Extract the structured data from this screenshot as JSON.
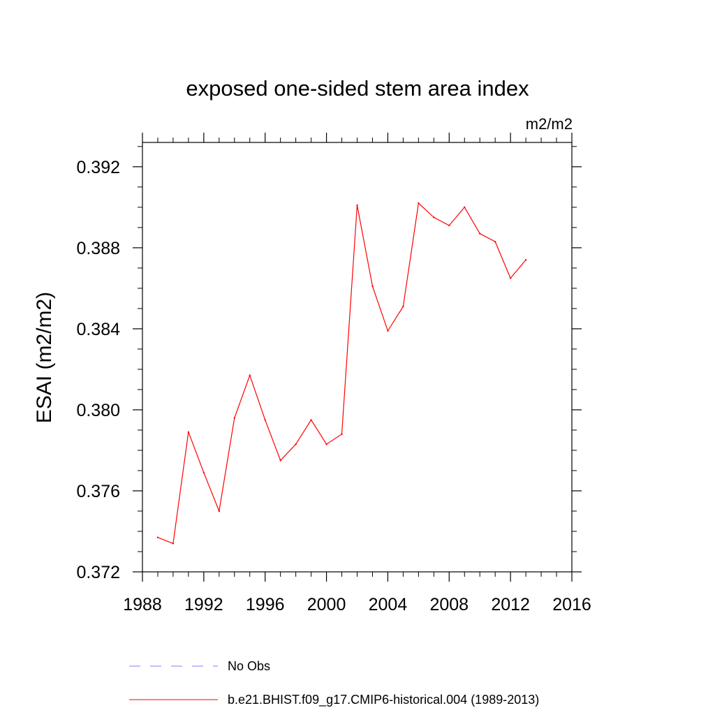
{
  "chart_data": {
    "type": "line",
    "title": "exposed one-sided stem area index",
    "units": "m2/m2",
    "ylabel": "ESAI  (m2/m2)",
    "xlabel": "",
    "xlim": [
      1988,
      2016
    ],
    "ylim": [
      0.372,
      0.3932
    ],
    "x_ticks": [
      1988,
      1992,
      1996,
      2000,
      2004,
      2008,
      2012,
      2016
    ],
    "x_tick_labels": [
      "1988",
      "1992",
      "1996",
      "2000",
      "2004",
      "2008",
      "2012",
      "2016"
    ],
    "y_ticks": [
      0.372,
      0.376,
      0.38,
      0.384,
      0.388,
      0.392
    ],
    "y_tick_labels": [
      "0.372",
      "0.376",
      "0.380",
      "0.384",
      "0.388",
      "0.392"
    ],
    "grid": false,
    "legend_position": "bottom",
    "legend": [
      {
        "label": "No Obs",
        "color": "#8080ff",
        "style": "dashed"
      },
      {
        "label": "b.e21.BHIST.f09_g17.CMIP6-historical.004 (1989-2013)",
        "color": "#ff0000",
        "style": "solid"
      }
    ],
    "series": [
      {
        "name": "b.e21.BHIST.f09_g17.CMIP6-historical.004 (1989-2013)",
        "color": "#ff0000",
        "x": [
          1989,
          1990,
          1991,
          1992,
          1993,
          1994,
          1995,
          1996,
          1997,
          1998,
          1999,
          2000,
          2001,
          2002,
          2003,
          2004,
          2005,
          2006,
          2007,
          2008,
          2009,
          2010,
          2011,
          2012,
          2013
        ],
        "y": [
          0.3737,
          0.3734,
          0.3789,
          0.3769,
          0.375,
          0.3796,
          0.3817,
          0.3795,
          0.3775,
          0.3783,
          0.3795,
          0.3783,
          0.3788,
          0.3901,
          0.3861,
          0.3839,
          0.3851,
          0.3902,
          0.3895,
          0.3891,
          0.39,
          0.3887,
          0.3883,
          0.3865,
          0.3874
        ]
      }
    ]
  }
}
